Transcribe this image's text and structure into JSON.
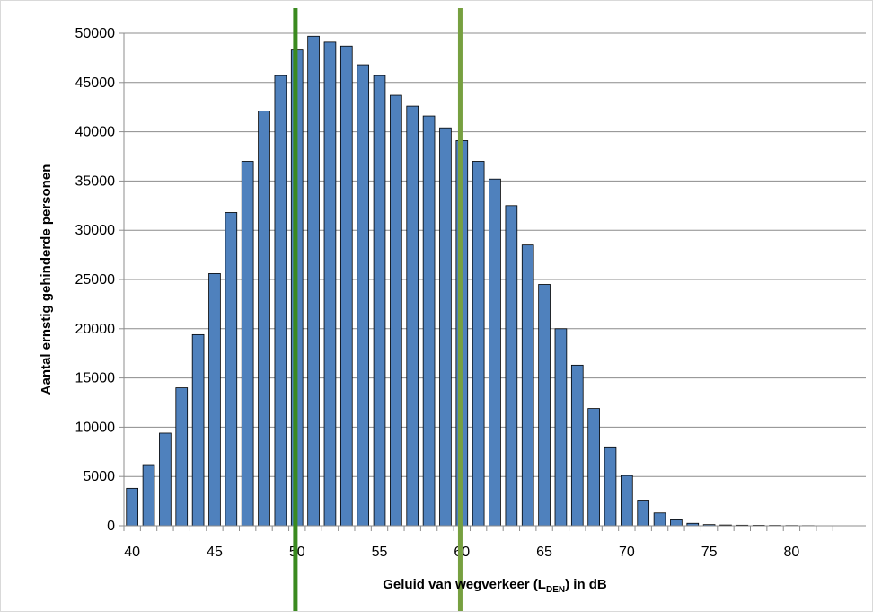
{
  "chart_data": {
    "type": "bar",
    "title": "",
    "xlabel": {
      "prefix": "Geluid van wegverkeer (L",
      "subscript": "DEN",
      "suffix": ") in dB"
    },
    "ylabel": "Aantal ernstig gehinderde personen",
    "x": [
      40,
      41,
      42,
      43,
      44,
      45,
      46,
      47,
      48,
      49,
      50,
      51,
      52,
      53,
      54,
      55,
      56,
      57,
      58,
      59,
      60,
      61,
      62,
      63,
      64,
      65,
      66,
      67,
      68,
      69,
      70,
      71,
      72,
      73,
      74,
      75,
      76,
      77,
      78,
      79,
      80,
      81,
      82,
      83
    ],
    "values": [
      3800,
      6200,
      9400,
      14000,
      19400,
      25600,
      31800,
      37000,
      42100,
      45700,
      48300,
      49700,
      49100,
      48700,
      46800,
      45700,
      43700,
      42600,
      41600,
      40400,
      39100,
      37000,
      35200,
      32500,
      28500,
      24500,
      20000,
      16300,
      11900,
      8000,
      5100,
      2600,
      1300,
      600,
      250,
      120,
      80,
      60,
      50,
      40,
      30,
      20,
      0,
      0
    ],
    "xlim": [
      39.5,
      84.5
    ],
    "ylim": [
      0,
      50000
    ],
    "x_ticks": [
      "40",
      "45",
      "50",
      "55",
      "60",
      "65",
      "70",
      "75",
      "80"
    ],
    "y_ticks": [
      "0",
      "5000",
      "10000",
      "15000",
      "20000",
      "25000",
      "30000",
      "35000",
      "40000",
      "45000",
      "50000"
    ],
    "grid": "horizontal",
    "bar_color": "#4F81BD",
    "bar_edge_color": "#000000",
    "reference_lines": [
      {
        "x": 49.9,
        "color": "#3A8A1F"
      },
      {
        "x": 59.9,
        "color": "#77A040"
      }
    ]
  }
}
